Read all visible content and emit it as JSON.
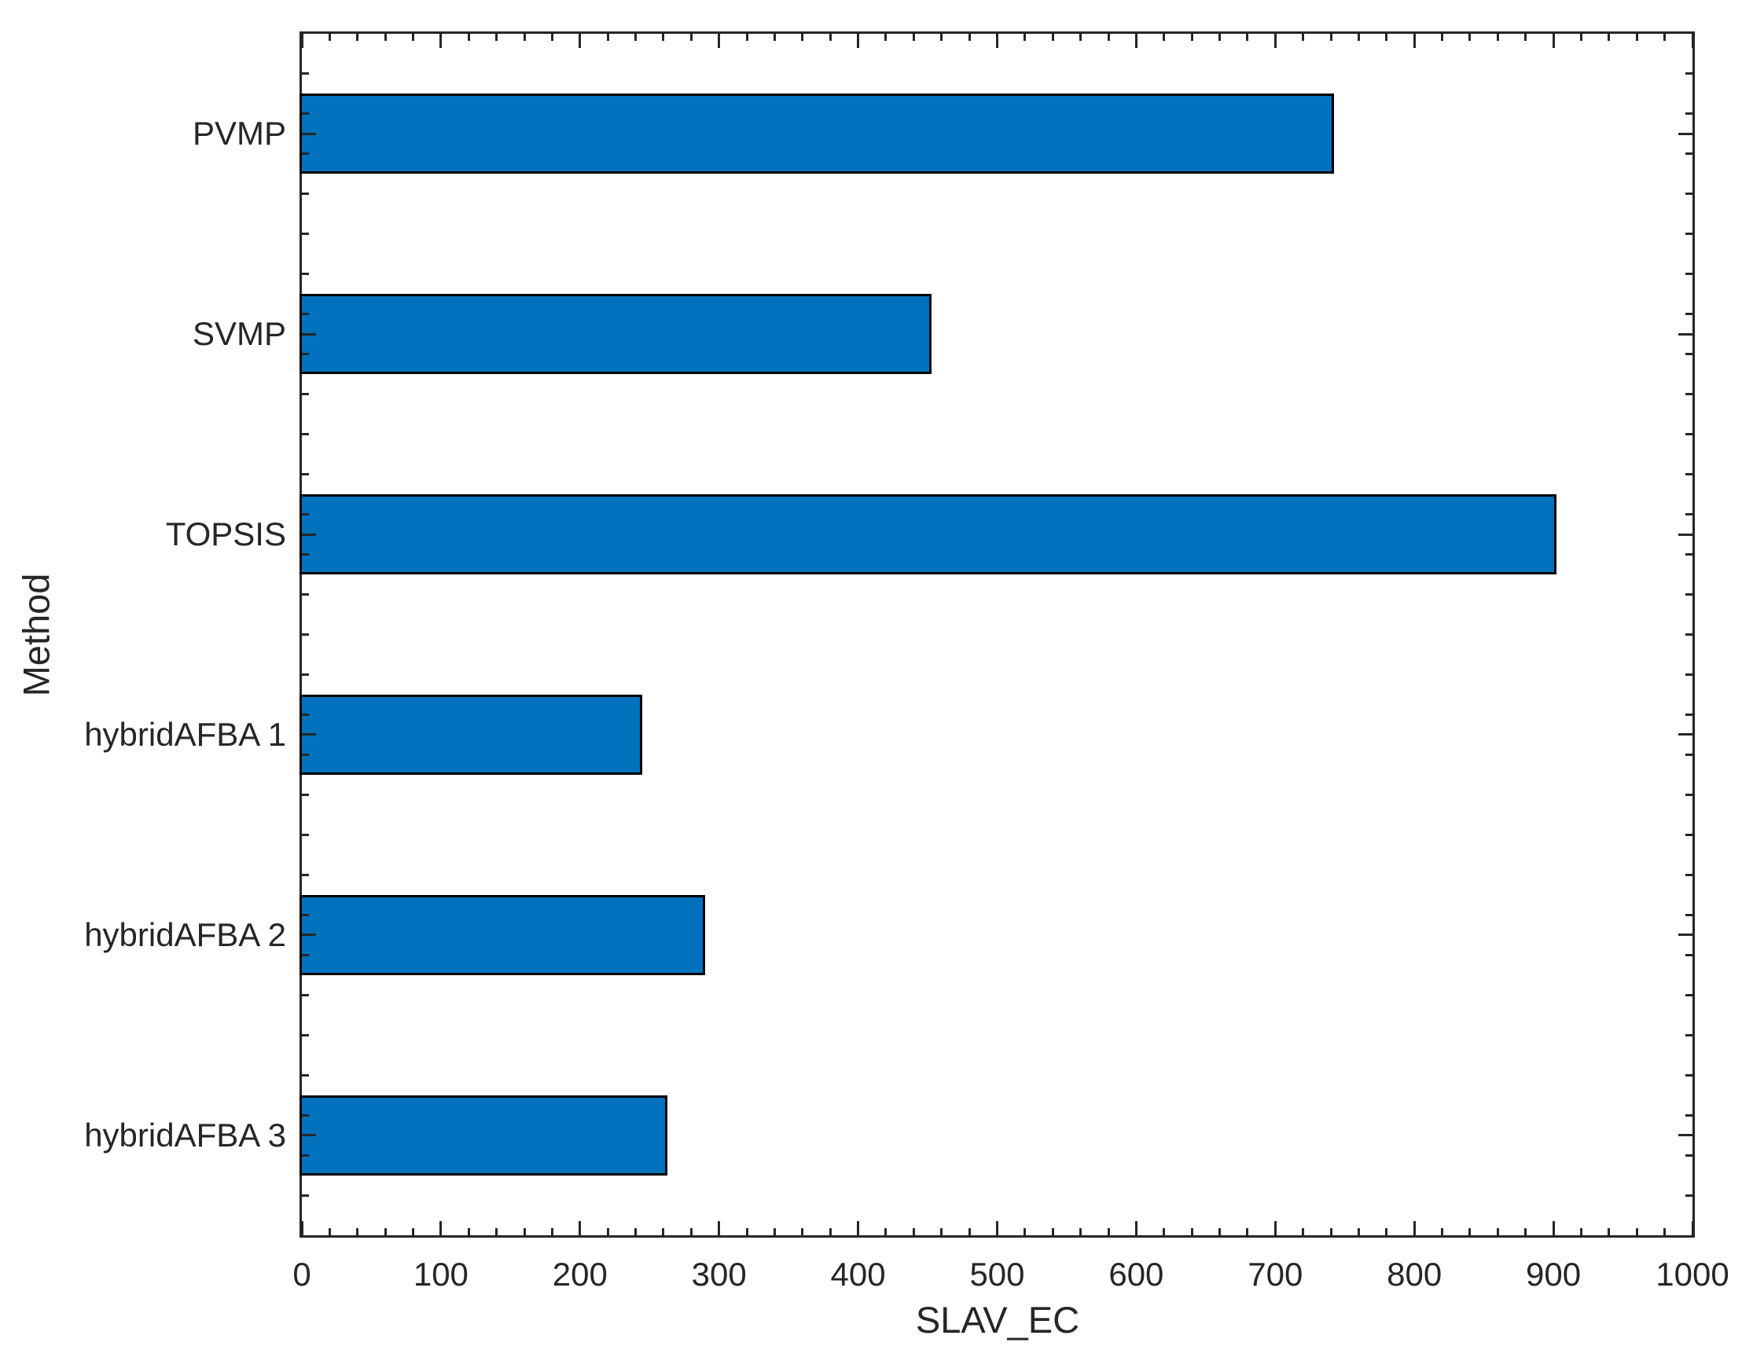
{
  "chart_data": {
    "type": "bar",
    "orientation": "horizontal",
    "xlabel": "SLAV_EC",
    "ylabel": "Method",
    "categories": [
      "PVMP",
      "SVMP",
      "TOPSIS",
      "hybridAFBA 1",
      "hybridAFBA 2",
      "hybridAFBA 3"
    ],
    "values": [
      742,
      453,
      902,
      245,
      290,
      263
    ],
    "xlim": [
      0,
      1000
    ],
    "ylim_category_units": [
      0.5,
      6.5
    ],
    "xticks": [
      0,
      100,
      200,
      300,
      400,
      500,
      600,
      700,
      800,
      900,
      1000
    ],
    "x_minor_tick_step": 20,
    "y_minor_tick_step": 0.2,
    "bar_width_fraction": 0.4,
    "grid": false,
    "colors": {
      "bar_fill": "#0072BD",
      "bar_edge": "#000000",
      "axis": "#262626",
      "text": "#262626",
      "background": "#FFFFFF"
    }
  }
}
